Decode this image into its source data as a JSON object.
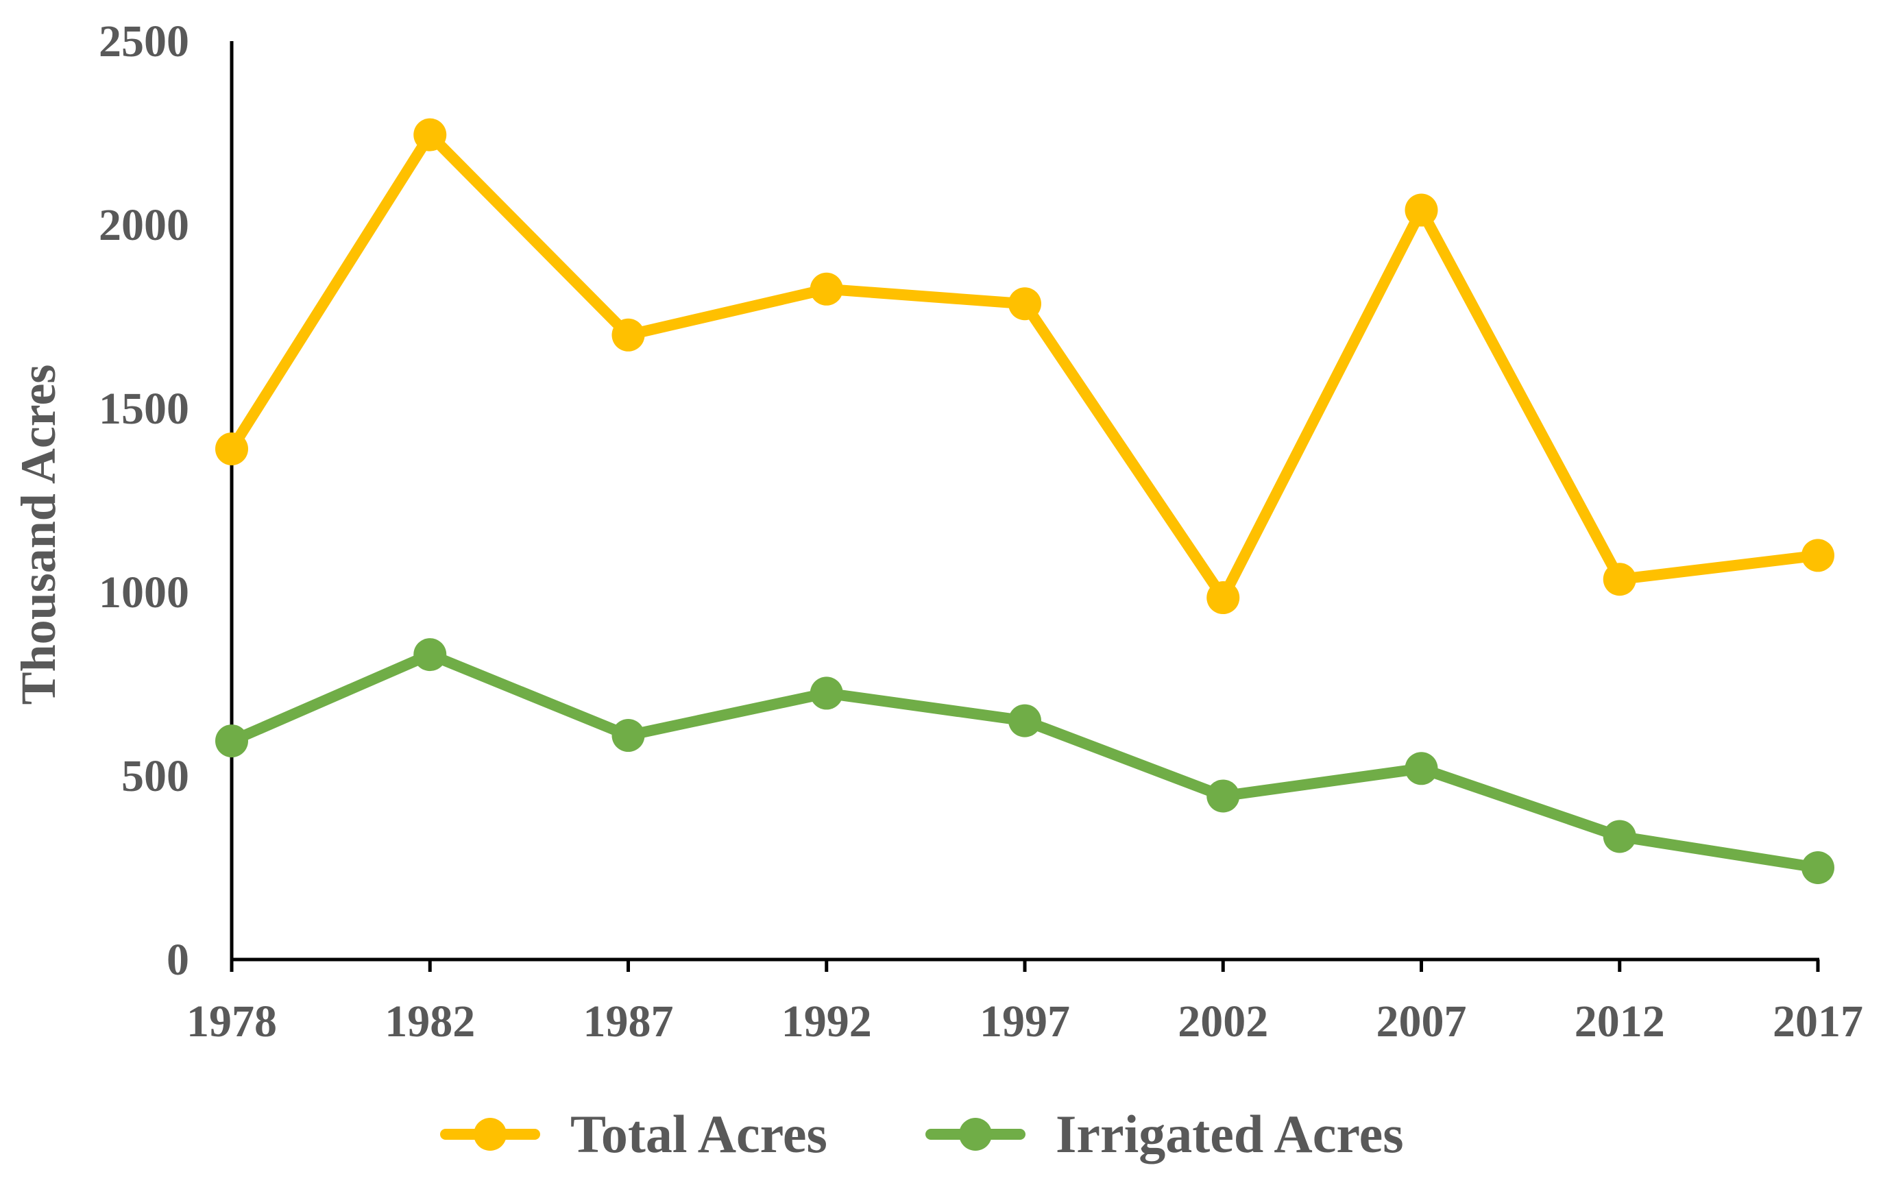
{
  "chart_data": {
    "type": "line",
    "title": "",
    "xlabel": "",
    "ylabel": "Thousand Acres",
    "categories": [
      "1978",
      "1982",
      "1987",
      "1992",
      "1997",
      "2002",
      "2007",
      "2012",
      "2017"
    ],
    "ylim": [
      0,
      2500
    ],
    "yticks": [
      "0",
      "500",
      "1000",
      "1500",
      "2000",
      "2500"
    ],
    "legend_position": "bottom",
    "series": [
      {
        "name": "Total Acres",
        "color": "#FFC000",
        "values": [
          1390,
          2245,
          1700,
          1825,
          1785,
          985,
          2040,
          1035,
          1100
        ]
      },
      {
        "name": "Irrigated Acres",
        "color": "#70AD47",
        "values": [
          595,
          830,
          610,
          725,
          650,
          445,
          520,
          335,
          250
        ]
      }
    ]
  }
}
